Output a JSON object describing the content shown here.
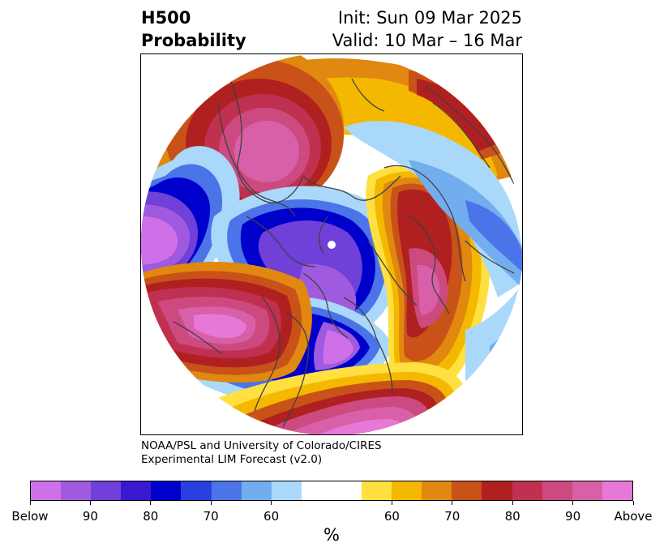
{
  "header": {
    "title_line1": "H500",
    "title_line2": "Probability",
    "init_label": "Init: Sun 09 Mar 2025",
    "valid_label": "Valid: 10 Mar – 16 Mar"
  },
  "credit": {
    "line1": "NOAA/PSL and University of Colorado/CIRES",
    "line2": "Experimental LIM Forecast (v2.0)"
  },
  "colorbar": {
    "below_colors": [
      "#d070e8",
      "#a05ae0",
      "#7040d8",
      "#3a18d0",
      "#0000cc",
      "#2840e0",
      "#4a74e8",
      "#72aeee",
      "#aad8fa"
    ],
    "neutral_color": "#ffffff",
    "above_colors": [
      "#ffe040",
      "#f5b800",
      "#e08810",
      "#c85218",
      "#b02020",
      "#c03050",
      "#cc4a80",
      "#d860a8",
      "#e878d8"
    ],
    "tick_labels": [
      "Below",
      "90",
      "80",
      "70",
      "60",
      "60",
      "70",
      "80",
      "90",
      "Above"
    ],
    "unit_label": "%"
  }
}
